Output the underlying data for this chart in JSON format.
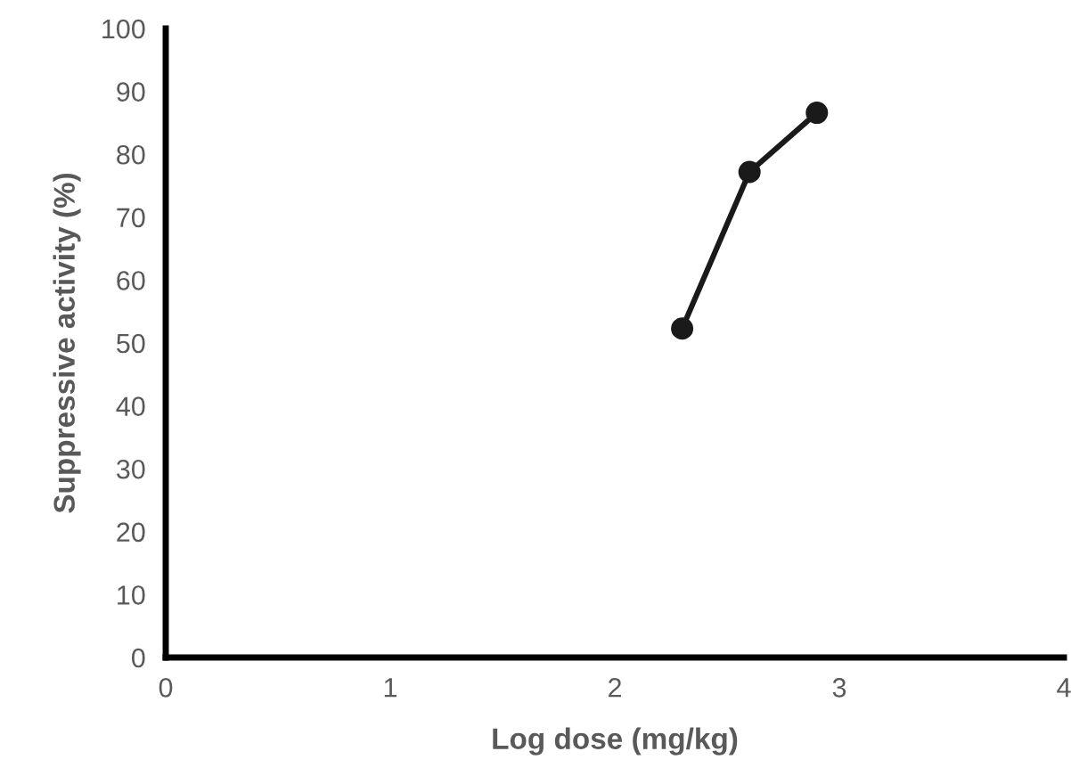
{
  "chart_data": {
    "type": "line",
    "xlabel": "Log dose (mg/kg)",
    "ylabel": "Suppressive activity (%)",
    "x": [
      2.3,
      2.6,
      2.9
    ],
    "series": [
      {
        "color": "#1a1a1a",
        "values": [
          52.3,
          77.2,
          86.6
        ]
      }
    ],
    "xlim": [
      0,
      4
    ],
    "xticks": [
      0,
      1,
      2,
      3,
      4
    ],
    "ylim": [
      0,
      100
    ],
    "yticks": [
      0,
      10,
      20,
      30,
      40,
      50,
      60,
      70,
      80,
      90,
      100
    ],
    "grid": false,
    "marker": "circle",
    "line_style": "solid"
  }
}
